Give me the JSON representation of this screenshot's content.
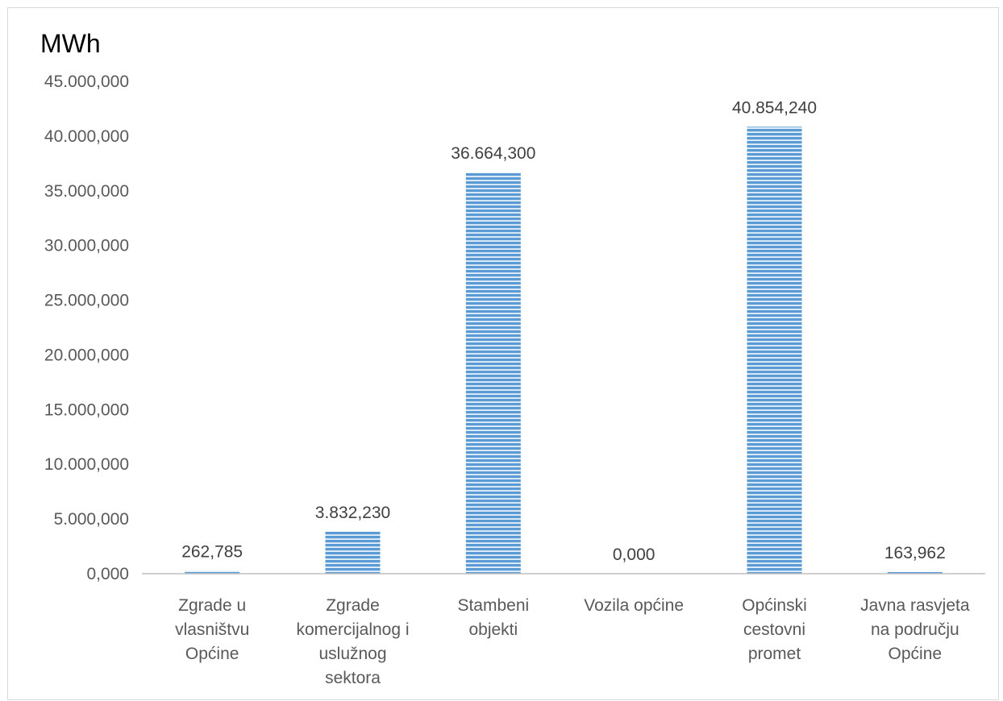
{
  "chart_data": {
    "type": "bar",
    "unit_label": "MWh",
    "categories": [
      [
        "Zgrade u",
        "vlasništvu",
        "Općine"
      ],
      [
        "Zgrade",
        "komercijalnog i",
        "uslužnog",
        "sektora"
      ],
      [
        "Stambeni",
        "objekti"
      ],
      [
        "Vozila općine"
      ],
      [
        "Općinski",
        "cestovni",
        "promet"
      ],
      [
        "Javna rasvjeta",
        "na području",
        "Općine"
      ]
    ],
    "values": [
      262.785,
      3832.23,
      36664.3,
      0,
      40854.24,
      163.962
    ],
    "value_labels": [
      "262,785",
      "3.832,230",
      "36.664,300",
      "0,000",
      "40.854,240",
      "163,962"
    ],
    "y_ticks": [
      "0,000",
      "5.000,000",
      "10.000,000",
      "15.000,000",
      "20.000,000",
      "25.000,000",
      "30.000,000",
      "35.000,000",
      "40.000,000",
      "45.000,000"
    ],
    "y_tick_values": [
      0,
      5000,
      10000,
      15000,
      20000,
      25000,
      30000,
      35000,
      40000,
      45000
    ],
    "ylim": [
      0,
      45000
    ],
    "bar_color": "#5b9bd5",
    "bar_stripe_color": "#ffffff",
    "grid": false,
    "legend": "none"
  }
}
